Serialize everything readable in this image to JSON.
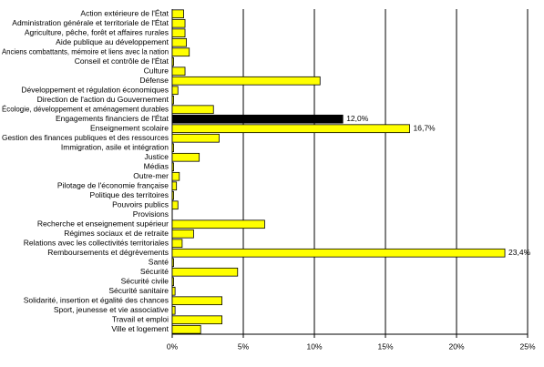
{
  "chart_data": {
    "type": "hbar",
    "categories": [
      "Action extérieure de l'État",
      "Administration générale et territoriale de l'État",
      "Agriculture, pêche, forêt et affaires rurales",
      "Aide publique au développement",
      "Anciens combattants, mémoire et liens avec la nation",
      "Conseil et contrôle de l'État",
      "Culture",
      "Défense",
      "Développement et régulation économiques",
      "Direction de l'action du Gouvernement",
      "Écologie, développement et aménagement durables",
      "Engagements financiers de l'État",
      "Enseignement scolaire",
      "Gestion des finances publiques et des ressources",
      "Immigration, asile et intégration",
      "Justice",
      "Médias",
      "Outre-mer",
      "Pilotage de l'économie française",
      "Politique des territoires",
      "Pouvoirs publics",
      "Provisions",
      "Recherche et enseignement supérieur",
      "Régimes sociaux et de retraite",
      "Relations avec les collectivités territoriales",
      "Remboursements et dégrèvements",
      "Santé",
      "Sécurité",
      "Sécurité civile",
      "Sécurité sanitaire",
      "Solidarité, insertion et égalité des chances",
      "Sport, jeunesse et vie associative",
      "Travail et emploi",
      "Ville et logement"
    ],
    "values": [
      0.8,
      0.9,
      0.9,
      1.0,
      1.2,
      0.1,
      0.9,
      10.4,
      0.4,
      0.1,
      2.9,
      12.0,
      16.7,
      3.3,
      0.1,
      1.9,
      0.1,
      0.5,
      0.3,
      0.1,
      0.4,
      0,
      6.5,
      1.5,
      0.7,
      23.4,
      0.1,
      4.6,
      0.1,
      0.2,
      3.5,
      0.2,
      3.5,
      2.0
    ],
    "value_labels": [
      null,
      null,
      null,
      null,
      null,
      null,
      null,
      null,
      null,
      null,
      null,
      "12,0%",
      "16,7%",
      null,
      null,
      null,
      null,
      null,
      null,
      null,
      null,
      null,
      null,
      null,
      null,
      "23,4%",
      null,
      null,
      null,
      null,
      null,
      null,
      null,
      null
    ],
    "color": "#ffff00",
    "highlight": {
      "index": 11,
      "color": "#000000"
    },
    "xlim": [
      0,
      25
    ],
    "xticks": [
      {
        "value": 0,
        "label": "0%"
      },
      {
        "value": 5,
        "label": "5%"
      },
      {
        "value": 10,
        "label": "10%"
      },
      {
        "value": 15,
        "label": "15%"
      },
      {
        "value": 20,
        "label": "20%"
      },
      {
        "value": 25,
        "label": "25%"
      }
    ],
    "grid": true
  }
}
